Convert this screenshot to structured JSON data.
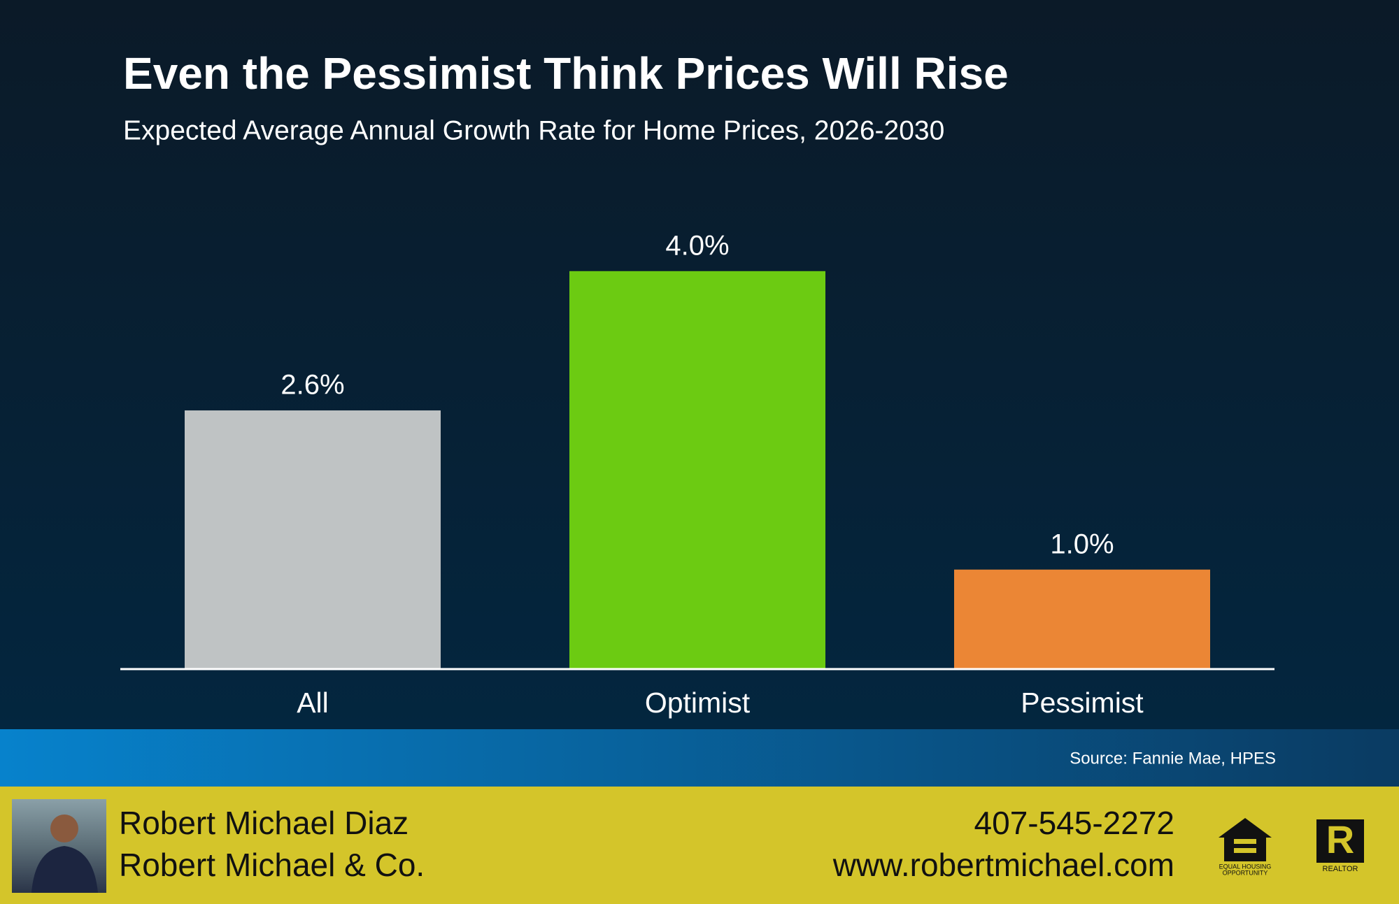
{
  "chart_data": {
    "type": "bar",
    "title": "Even the Pessimist Think Prices Will Rise",
    "subtitle": "Expected Average Annual Growth Rate for Home Prices, 2026-2030",
    "categories": [
      "All",
      "Optimist",
      "Pessimist"
    ],
    "values": [
      2.6,
      4.0,
      1.0
    ],
    "value_labels": [
      "2.6%",
      "4.0%",
      "1.0%"
    ],
    "colors": [
      "#bfc3c4",
      "#6ccb12",
      "#eb8635"
    ]
  },
  "source": "Source: Fannie Mae, HPES",
  "footer": {
    "name": "Robert Michael Diaz",
    "company": "Robert Michael & Co.",
    "phone": "407-545-2272",
    "website": "www.robertmichael.com",
    "equal_housing": [
      "EQUAL HOUSING",
      "OPPORTUNITY"
    ],
    "realtor": "REALTOR"
  }
}
